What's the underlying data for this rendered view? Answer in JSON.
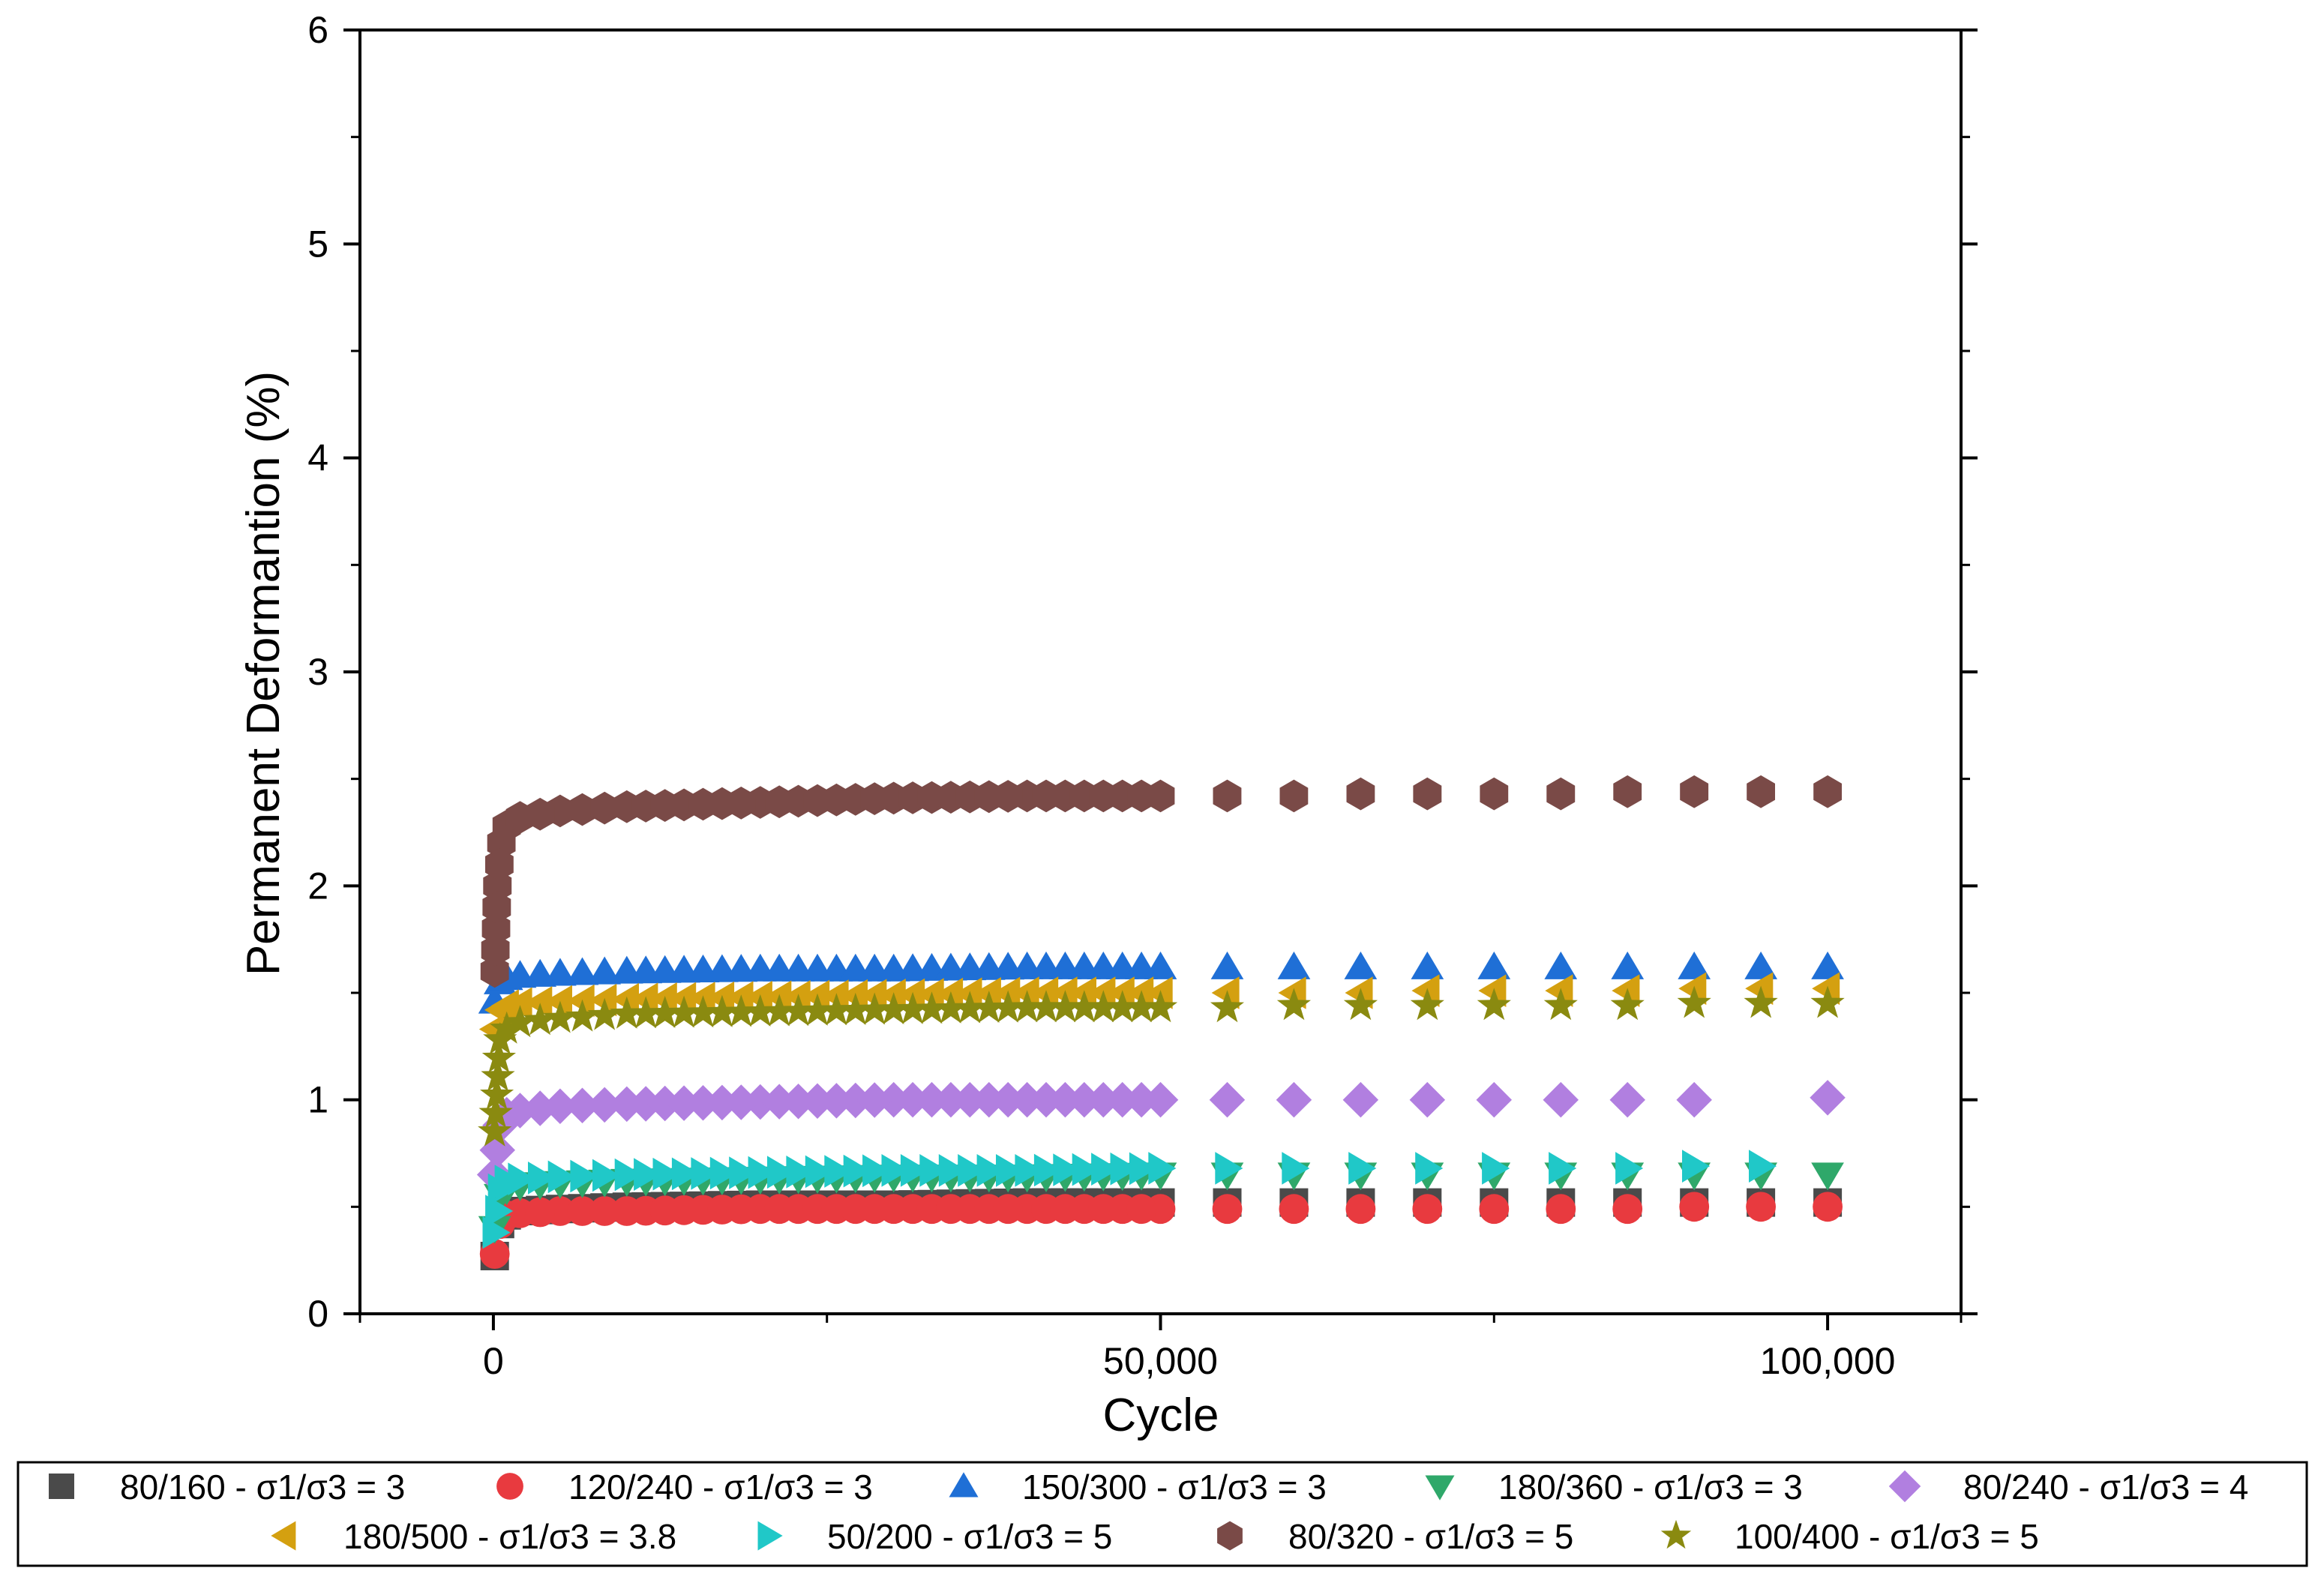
{
  "chart_data": {
    "type": "scatter",
    "title": "",
    "xlabel": "Cycle",
    "ylabel": "Permanent Deformantion (%)",
    "xlim": [
      -10000,
      110000
    ],
    "ylim": [
      0,
      6
    ],
    "x_ticks": [
      0,
      50000,
      100000
    ],
    "x_tick_labels": [
      "0",
      "50,000",
      "100,000"
    ],
    "y_ticks": [
      0,
      1,
      2,
      3,
      4,
      5,
      6
    ],
    "y_tick_labels": [
      "0",
      "1",
      "2",
      "3",
      "4",
      "5",
      "6"
    ],
    "grid": false,
    "legend_position": "bottom",
    "series": [
      {
        "name": "80/160 - σ1/σ3 = 3",
        "marker": "square",
        "color": "#4a4a4a",
        "x": [
          100,
          500,
          1000,
          2000,
          5000,
          10000,
          20000,
          30000,
          40000,
          50000,
          55000,
          60000,
          65000,
          70000,
          75000,
          80000,
          85000,
          90000,
          95000,
          100000
        ],
        "y": [
          0.27,
          0.42,
          0.46,
          0.48,
          0.49,
          0.5,
          0.51,
          0.51,
          0.52,
          0.52,
          0.52,
          0.52,
          0.52,
          0.52,
          0.52,
          0.52,
          0.52,
          0.52,
          0.52,
          0.52
        ]
      },
      {
        "name": "120/240 - σ1/σ3 = 3",
        "marker": "circle",
        "color": "#e83a3f",
        "x": [
          100,
          500,
          1000,
          2000,
          5000,
          10000,
          20000,
          30000,
          40000,
          50000,
          55000,
          60000,
          65000,
          70000,
          75000,
          80000,
          85000,
          90000,
          95000,
          100000
        ],
        "y": [
          0.28,
          0.42,
          0.46,
          0.47,
          0.48,
          0.48,
          0.49,
          0.49,
          0.49,
          0.49,
          0.49,
          0.49,
          0.49,
          0.49,
          0.49,
          0.49,
          0.49,
          0.5,
          0.5,
          0.5
        ]
      },
      {
        "name": "150/300 - σ1/σ3 = 3",
        "marker": "triangle-up",
        "color": "#1f6fd6",
        "x": [
          100,
          500,
          1000,
          2000,
          5000,
          10000,
          20000,
          30000,
          40000,
          50000,
          55000,
          60000,
          65000,
          70000,
          75000,
          80000,
          85000,
          90000,
          95000,
          100000
        ],
        "y": [
          1.46,
          1.55,
          1.57,
          1.58,
          1.59,
          1.6,
          1.61,
          1.61,
          1.62,
          1.62,
          1.62,
          1.62,
          1.62,
          1.62,
          1.62,
          1.62,
          1.62,
          1.62,
          1.62,
          1.62
        ]
      },
      {
        "name": "180/360 - σ1/σ3 = 3",
        "marker": "triangle-down",
        "color": "#2fa86a",
        "x": [
          100,
          500,
          1000,
          2000,
          5000,
          10000,
          20000,
          30000,
          40000,
          50000,
          55000,
          60000,
          65000,
          70000,
          75000,
          80000,
          85000,
          90000,
          95000,
          100000
        ],
        "y": [
          0.4,
          0.55,
          0.58,
          0.6,
          0.61,
          0.62,
          0.63,
          0.64,
          0.64,
          0.65,
          0.65,
          0.65,
          0.65,
          0.65,
          0.65,
          0.65,
          0.65,
          0.65,
          0.65,
          0.65
        ]
      },
      {
        "name": "80/240 - σ1/σ3 = 4",
        "marker": "diamond",
        "color": "#b17fe0",
        "x": [
          100,
          500,
          1000,
          2000,
          5000,
          10000,
          20000,
          30000,
          40000,
          50000,
          55000,
          60000,
          65000,
          70000,
          75000,
          80000,
          85000,
          90000,
          100000
        ],
        "y": [
          0.65,
          0.88,
          0.93,
          0.95,
          0.97,
          0.98,
          0.99,
          1.0,
          1.0,
          1.0,
          1.0,
          1.0,
          1.0,
          1.0,
          1.0,
          1.0,
          1.0,
          1.0,
          1.01
        ]
      },
      {
        "name": "180/500 - σ1/σ3 = 3.8",
        "marker": "triangle-left",
        "color": "#d4a010",
        "x": [
          100,
          500,
          1000,
          2000,
          5000,
          10000,
          20000,
          30000,
          40000,
          50000,
          55000,
          60000,
          65000,
          70000,
          75000,
          80000,
          85000,
          90000,
          95000,
          100000
        ],
        "y": [
          1.33,
          1.42,
          1.44,
          1.45,
          1.46,
          1.47,
          1.48,
          1.49,
          1.5,
          1.5,
          1.5,
          1.5,
          1.5,
          1.51,
          1.51,
          1.51,
          1.51,
          1.52,
          1.52,
          1.52
        ]
      },
      {
        "name": "50/200 - σ1/σ3 = 5",
        "marker": "triangle-right",
        "color": "#20c8c8",
        "x": [
          100,
          500,
          1000,
          2000,
          5000,
          10000,
          20000,
          30000,
          40000,
          50000,
          55000,
          60000,
          65000,
          70000,
          75000,
          80000,
          85000,
          90000,
          95000
        ],
        "y": [
          0.38,
          0.58,
          0.62,
          0.63,
          0.64,
          0.65,
          0.66,
          0.67,
          0.67,
          0.68,
          0.68,
          0.68,
          0.68,
          0.68,
          0.68,
          0.68,
          0.68,
          0.69,
          0.69
        ]
      },
      {
        "name": "80/320 - σ1/σ3 = 5",
        "marker": "hexagon",
        "color": "#7a4a47",
        "x": [
          100,
          300,
          600,
          1000,
          2000,
          5000,
          10000,
          20000,
          30000,
          40000,
          50000,
          55000,
          60000,
          65000,
          70000,
          75000,
          80000,
          85000,
          90000,
          95000,
          100000
        ],
        "y": [
          1.6,
          2.0,
          2.2,
          2.28,
          2.32,
          2.35,
          2.37,
          2.39,
          2.41,
          2.42,
          2.42,
          2.42,
          2.42,
          2.43,
          2.43,
          2.43,
          2.43,
          2.44,
          2.44,
          2.44,
          2.44
        ]
      },
      {
        "name": "100/400 - σ1/σ3 = 5",
        "marker": "star",
        "color": "#8a8a10",
        "x": [
          100,
          500,
          1000,
          2000,
          5000,
          10000,
          20000,
          30000,
          40000,
          50000,
          55000,
          60000,
          65000,
          70000,
          75000,
          80000,
          85000,
          90000,
          95000,
          100000
        ],
        "y": [
          0.85,
          1.28,
          1.33,
          1.36,
          1.38,
          1.4,
          1.41,
          1.42,
          1.43,
          1.43,
          1.43,
          1.44,
          1.44,
          1.44,
          1.44,
          1.44,
          1.44,
          1.45,
          1.45,
          1.45
        ]
      }
    ]
  }
}
